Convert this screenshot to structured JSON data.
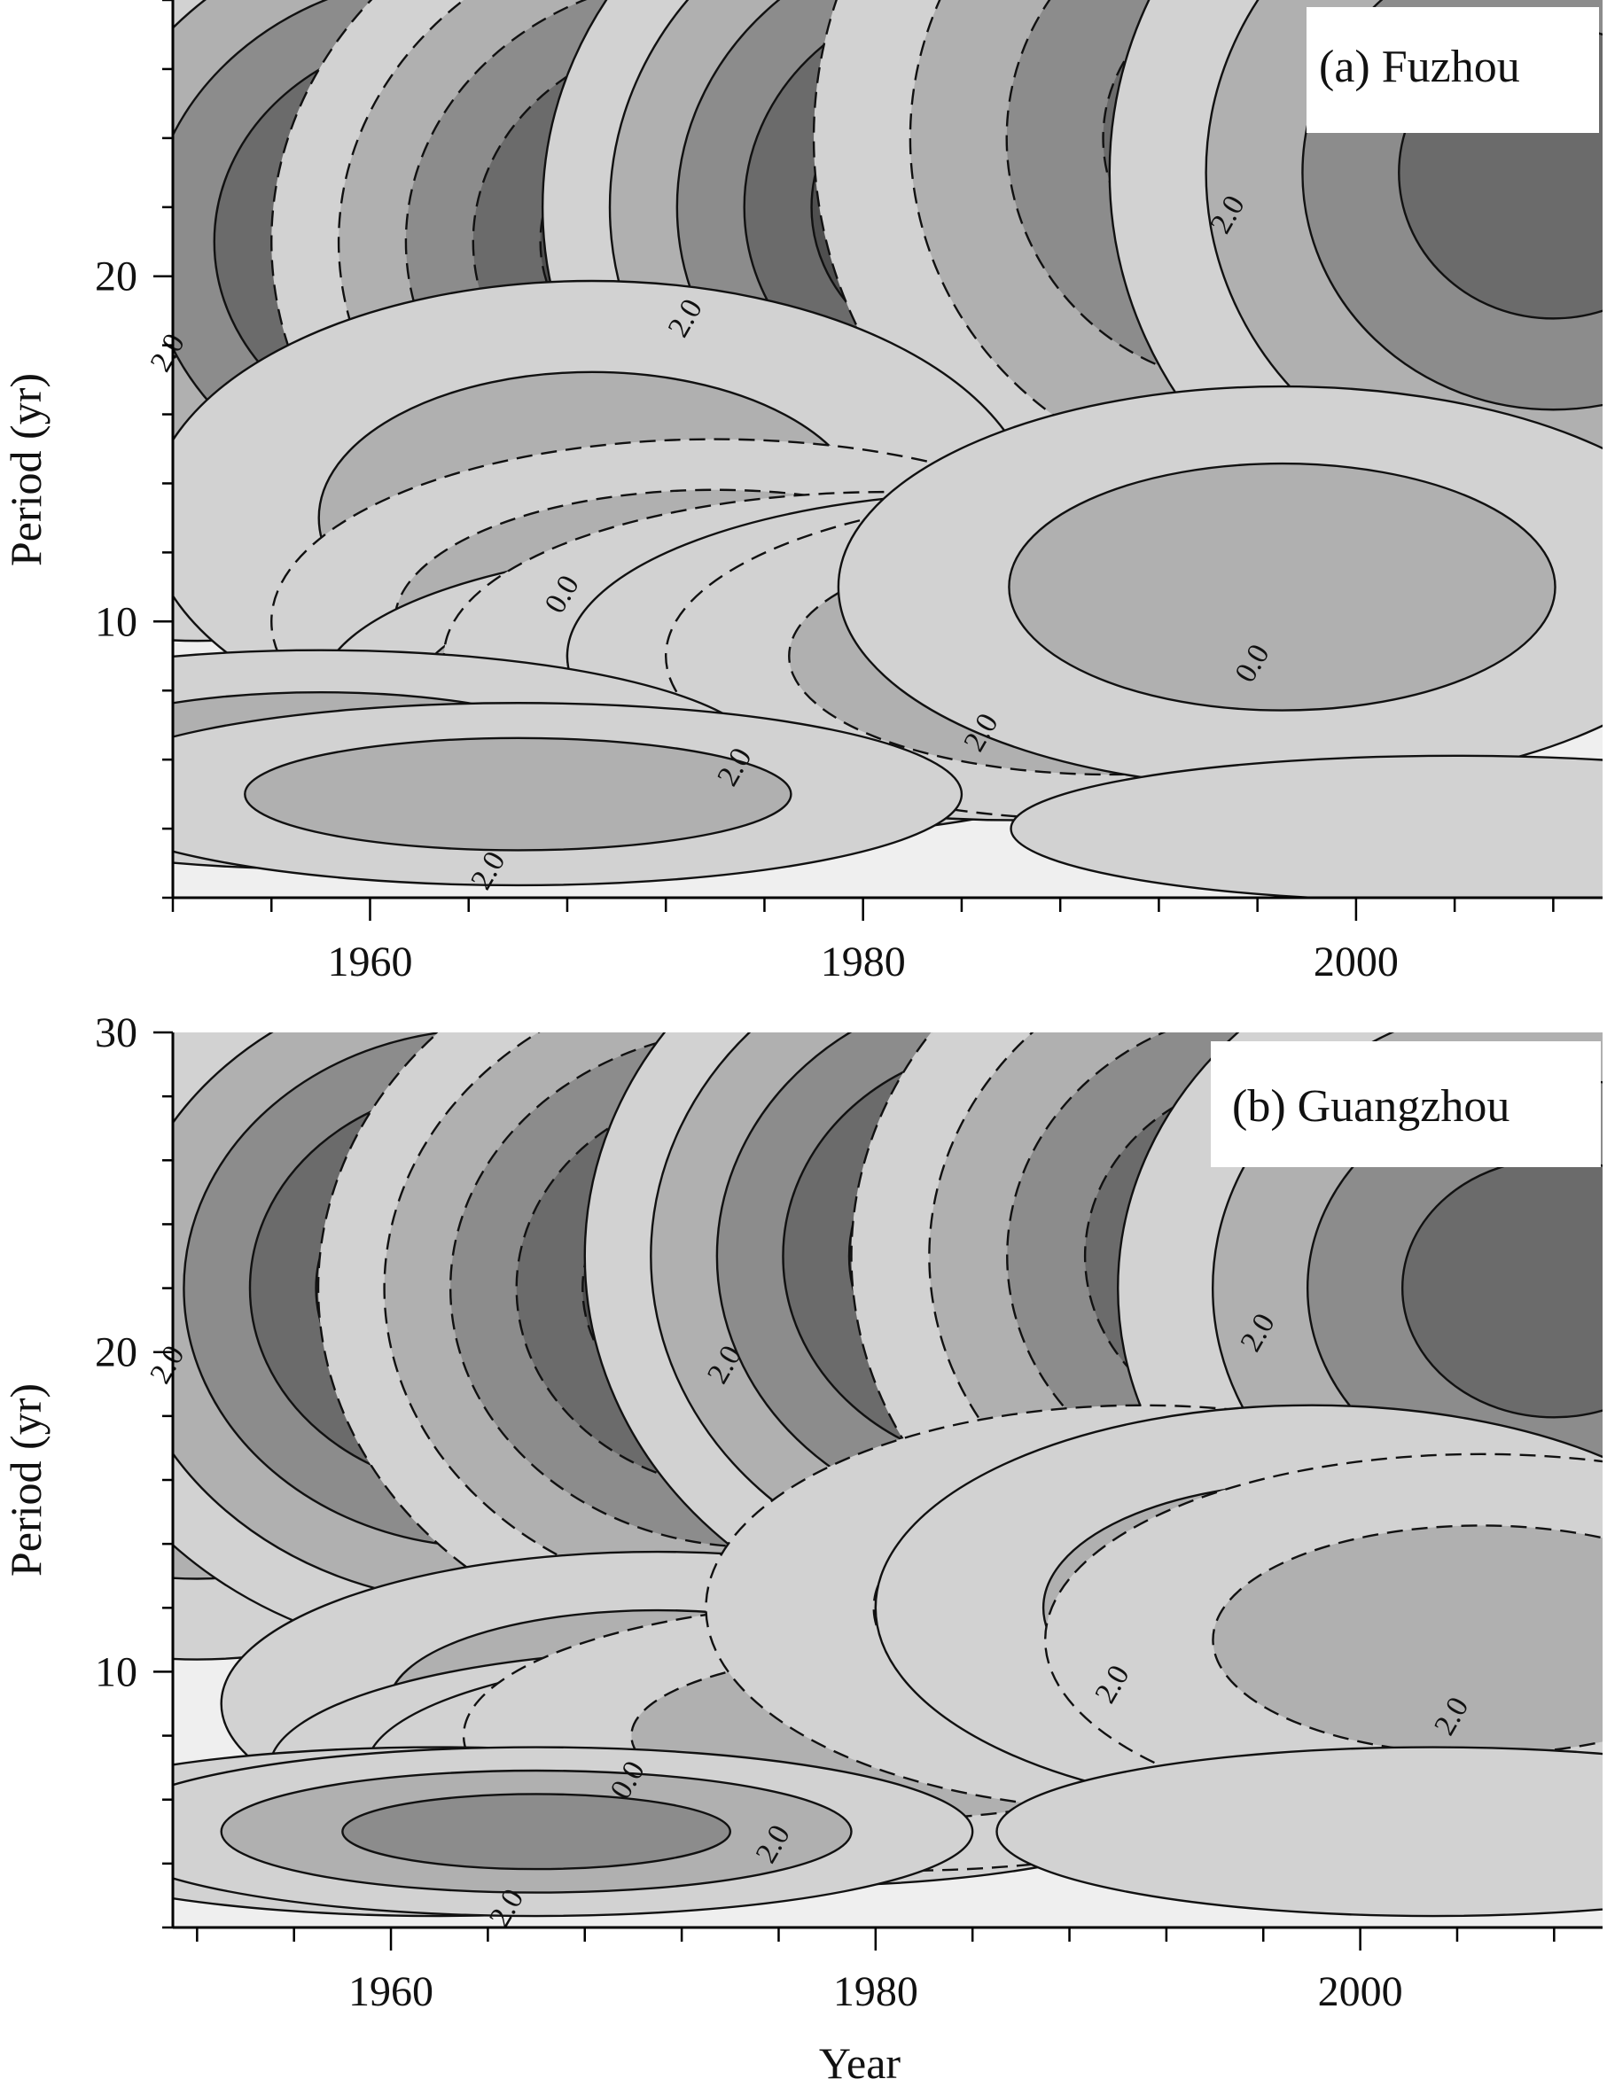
{
  "chart_data": [
    {
      "type": "heatmap",
      "subtype": "wavelet-contour",
      "panel_label": "(a) Fuzhou",
      "xlabel": "",
      "ylabel": "Period (yr)",
      "xlim": [
        1952,
        2010
      ],
      "ylim": [
        2,
        28
      ],
      "xticks": [
        1960,
        1980,
        2000
      ],
      "yticks": [
        10,
        20
      ],
      "contour_labels": [
        "0.0",
        "2.0"
      ],
      "shading": {
        "colors": [
          "#efefef",
          "#d2d2d2",
          "#b0b0b0",
          "#8c8c8c",
          "#6b6b6b",
          "#4f4f4f"
        ]
      },
      "cells": [
        {
          "year": 1953,
          "period": 20,
          "value": 3.5
        },
        {
          "year": 1963.5,
          "period": 21,
          "value": 5.5
        },
        {
          "year": 1974,
          "period": 21,
          "value": -5.5
        },
        {
          "year": 1985,
          "period": 22,
          "value": 5.5
        },
        {
          "year": 1996,
          "period": 24,
          "value": -4.0
        },
        {
          "year": 2008,
          "period": 23,
          "value": 3.5
        },
        {
          "year": 1969,
          "period": 13,
          "value": 1.5
        },
        {
          "year": 1974,
          "period": 10,
          "value": -2.5
        },
        {
          "year": 1976,
          "period": 8,
          "value": 3.5
        },
        {
          "year": 1981,
          "period": 9,
          "value": -3.0
        },
        {
          "year": 1986,
          "period": 9,
          "value": 3.0
        },
        {
          "year": 1990,
          "period": 9,
          "value": -3.0
        },
        {
          "year": 1997,
          "period": 11,
          "value": 1.5
        },
        {
          "year": 1958,
          "period": 6,
          "value": 1.5
        },
        {
          "year": 1966,
          "period": 5,
          "value": 2.0
        },
        {
          "year": 2004,
          "period": 4,
          "value": 1.0
        }
      ]
    },
    {
      "type": "heatmap",
      "subtype": "wavelet-contour",
      "panel_label": "(b) Guangzhou",
      "xlabel": "Year",
      "ylabel": "Period (yr)",
      "xlim": [
        1951,
        2010
      ],
      "ylim": [
        2,
        30
      ],
      "xticks": [
        1960,
        1980,
        2000
      ],
      "yticks": [
        10,
        20,
        30
      ],
      "contour_labels": [
        "0.0",
        "2.0"
      ],
      "shading": {
        "colors": [
          "#efefef",
          "#d2d2d2",
          "#b0b0b0",
          "#8c8c8c",
          "#6b6b6b",
          "#4f4f4f"
        ]
      },
      "cells": [
        {
          "year": 1952,
          "period": 22,
          "value": 3.5
        },
        {
          "year": 1964,
          "period": 22,
          "value": 5.5
        },
        {
          "year": 1975,
          "period": 22,
          "value": -5.5
        },
        {
          "year": 1986,
          "period": 23,
          "value": 5.5
        },
        {
          "year": 1997,
          "period": 23,
          "value": -5.0
        },
        {
          "year": 2008,
          "period": 22,
          "value": 3.5
        },
        {
          "year": 1971,
          "period": 9,
          "value": 1.5
        },
        {
          "year": 1973,
          "period": 7,
          "value": 2.5
        },
        {
          "year": 1977,
          "period": 7,
          "value": 2.5
        },
        {
          "year": 1981,
          "period": 8,
          "value": -2.0
        },
        {
          "year": 1991,
          "period": 12,
          "value": -2.0
        },
        {
          "year": 1998,
          "period": 12,
          "value": 2.0
        },
        {
          "year": 2005,
          "period": 11,
          "value": -2.0
        },
        {
          "year": 1962,
          "period": 5,
          "value": 2.0
        },
        {
          "year": 1966,
          "period": 5,
          "value": 3.0
        },
        {
          "year": 2003,
          "period": 5,
          "value": 1.0
        }
      ]
    }
  ]
}
